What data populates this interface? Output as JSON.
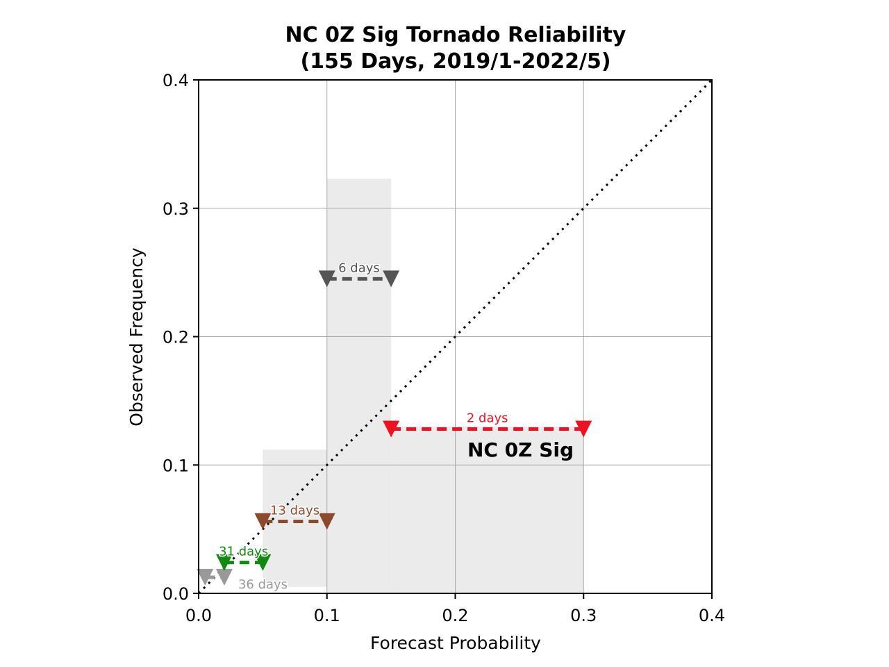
{
  "chart_data": {
    "type": "scatter",
    "title": [
      "NC 0Z Sig Tornado Reliability",
      "(155 Days, 2019/1-2022/5)"
    ],
    "xlabel": "Forecast Probability",
    "ylabel": "Observed Frequency",
    "xlim": [
      0.0,
      0.4
    ],
    "ylim": [
      0.0,
      0.4
    ],
    "xticks": [
      "0.0",
      "0.1",
      "0.2",
      "0.3",
      "0.4"
    ],
    "yticks": [
      "0.0",
      "0.1",
      "0.2",
      "0.3",
      "0.4"
    ],
    "grid": true,
    "diagonal": true,
    "bins": [
      {
        "x_lo": 0.005,
        "x_hi": 0.02,
        "observed": 0.0125,
        "days": "36 days",
        "color": "#999999",
        "range_lo": null,
        "range_hi": null
      },
      {
        "x_lo": 0.02,
        "x_hi": 0.05,
        "observed": 0.024,
        "days": "31 days",
        "color": "#128a12",
        "range_lo": null,
        "range_hi": null
      },
      {
        "x_lo": 0.05,
        "x_hi": 0.1,
        "observed": 0.056,
        "days": "13 days",
        "color": "#8b4a2b",
        "range_lo": 0.005,
        "range_hi": 0.112
      },
      {
        "x_lo": 0.1,
        "x_hi": 0.15,
        "observed": 0.245,
        "days": "6 days",
        "color": "#555555",
        "range_lo": 0.0,
        "range_hi": 0.323
      },
      {
        "x_lo": 0.15,
        "x_hi": 0.3,
        "observed": 0.128,
        "days": "2 days",
        "color": "#ee1122",
        "range_lo": 0.0,
        "range_hi": 0.13
      }
    ],
    "annotation": {
      "text": "NC 0Z Sig",
      "x": 0.2,
      "y": 0.112
    }
  }
}
